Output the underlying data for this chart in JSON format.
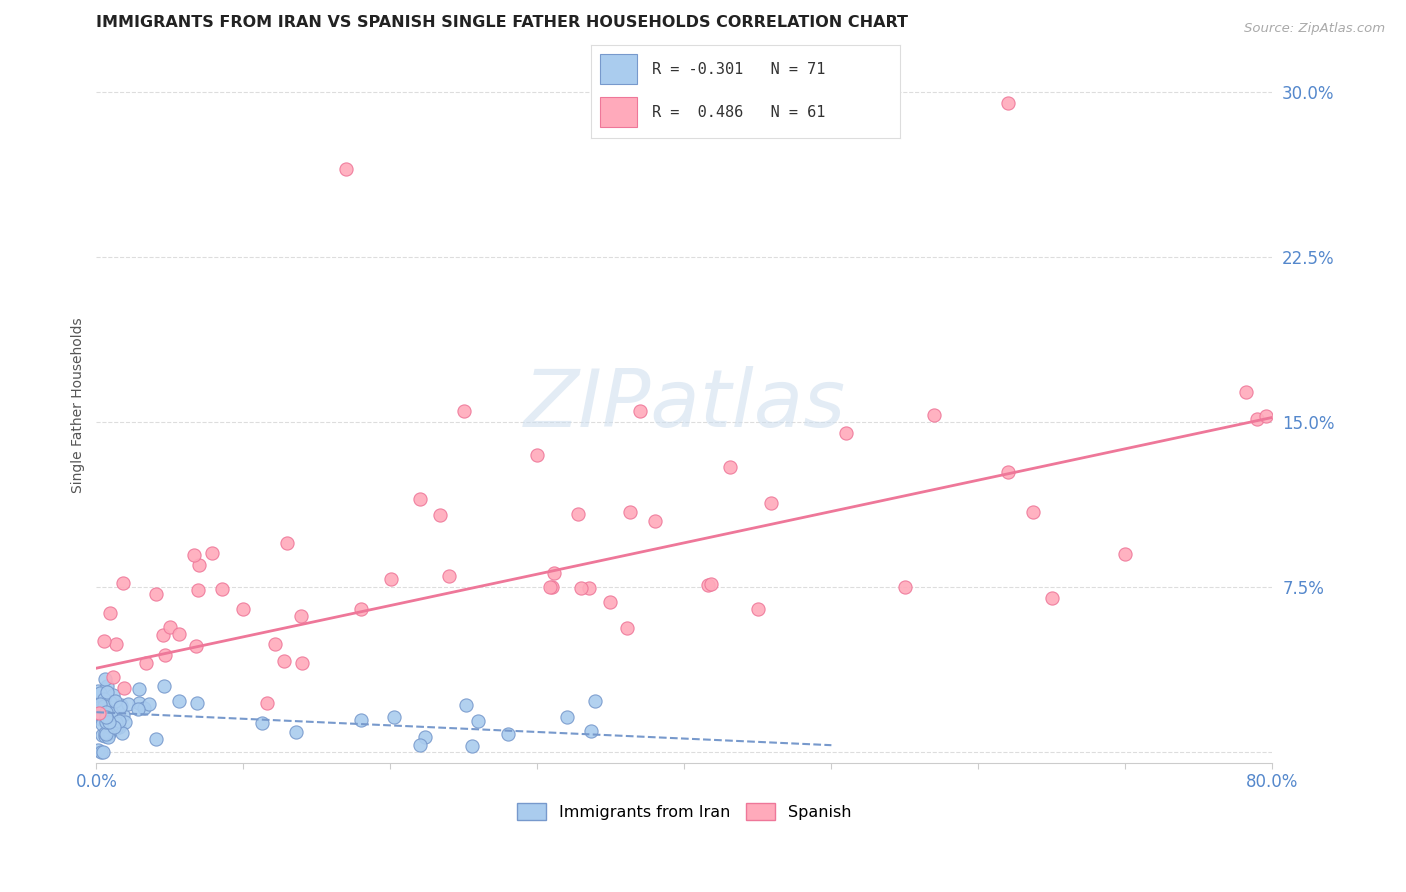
{
  "title": "IMMIGRANTS FROM IRAN VS SPANISH SINGLE FATHER HOUSEHOLDS CORRELATION CHART",
  "source": "Source: ZipAtlas.com",
  "ylabel": "Single Father Households",
  "xlim": [
    0.0,
    0.8
  ],
  "ylim": [
    -0.005,
    0.32
  ],
  "iran_R": -0.301,
  "iran_N": 71,
  "spanish_R": 0.486,
  "spanish_N": 61,
  "iran_color": "#aaccee",
  "spanish_color": "#ffaabb",
  "iran_edge_color": "#7799cc",
  "spanish_edge_color": "#ee7799",
  "iran_line_color": "#7799cc",
  "spanish_line_color": "#ee7799",
  "background_color": "#ffffff",
  "grid_color": "#dddddd",
  "title_color": "#222222",
  "source_color": "#aaaaaa",
  "tick_label_color": "#5588cc",
  "watermark_color": "#ccddee",
  "legend_box_color": "#dddddd",
  "spanish_line_x0": 0.0,
  "spanish_line_y0": 0.038,
  "spanish_line_x1": 0.8,
  "spanish_line_y1": 0.152,
  "iran_line_x0": 0.0,
  "iran_line_y0": 0.018,
  "iran_line_x1": 0.5,
  "iran_line_y1": 0.003
}
